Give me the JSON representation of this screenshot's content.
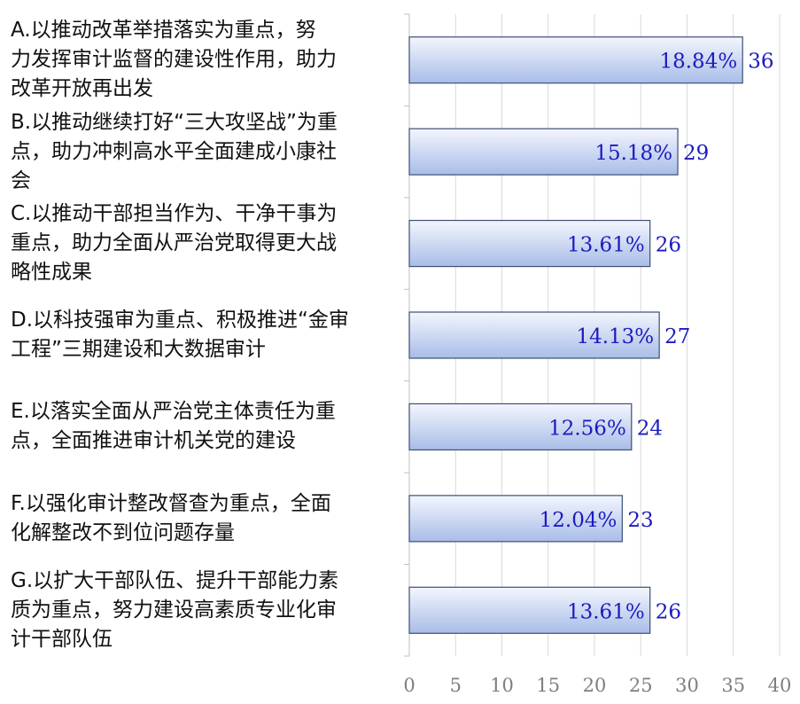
{
  "chart_data": {
    "type": "bar",
    "orientation": "horizontal",
    "categories": [
      "A.以推动改革举措落实为重点，努\n力发挥审计监督的建设性作用，助力\n改革开放再出发",
      "B.以推动继续打好“三大攻坚战”为重\n点，助力冲刺高水平全面建成小康社\n会",
      "C.以推动干部担当作为、干净干事为\n重点，助力全面从严治党取得更大战\n略性成果",
      "D.以科技强审为重点、积极推进“金审\n工程”三期建设和大数据审计",
      "E.以落实全面从严治党主体责任为重\n点，全面推进审计机关党的建设",
      "F.以强化审计整改督查为重点，全面\n化解整改不到位问题存量",
      "G.以扩大干部队伍、提升干部能力素\n质为重点，努力建设高素质专业化审\n计干部队伍"
    ],
    "values": [
      36,
      29,
      26,
      27,
      24,
      23,
      26
    ],
    "percent_labels": [
      "18.84%",
      "15.18%",
      "13.61%",
      "14.13%",
      "12.56%",
      "12.04%",
      "13.61%"
    ],
    "value_labels": [
      "36",
      "29",
      "26",
      "27",
      "24",
      "23",
      "26"
    ],
    "xlim": [
      0,
      40
    ],
    "x_ticks": [
      0,
      5,
      10,
      15,
      20,
      25,
      30,
      35,
      40
    ],
    "x_tick_labels": [
      "0",
      "5",
      "10",
      "15",
      "20",
      "25",
      "30",
      "35",
      "40"
    ],
    "gridlines": "vertical",
    "legend": "none",
    "colors": {
      "bar_fill_light": "#f3f6fd",
      "bar_fill_dark": "#a9bde8",
      "bar_stroke": "#3d4f75",
      "label_text": "#1b1bbf",
      "grid": "#d9d9d9",
      "axis": "#bfbfbf",
      "tick_text": "#7f7f7f"
    }
  }
}
